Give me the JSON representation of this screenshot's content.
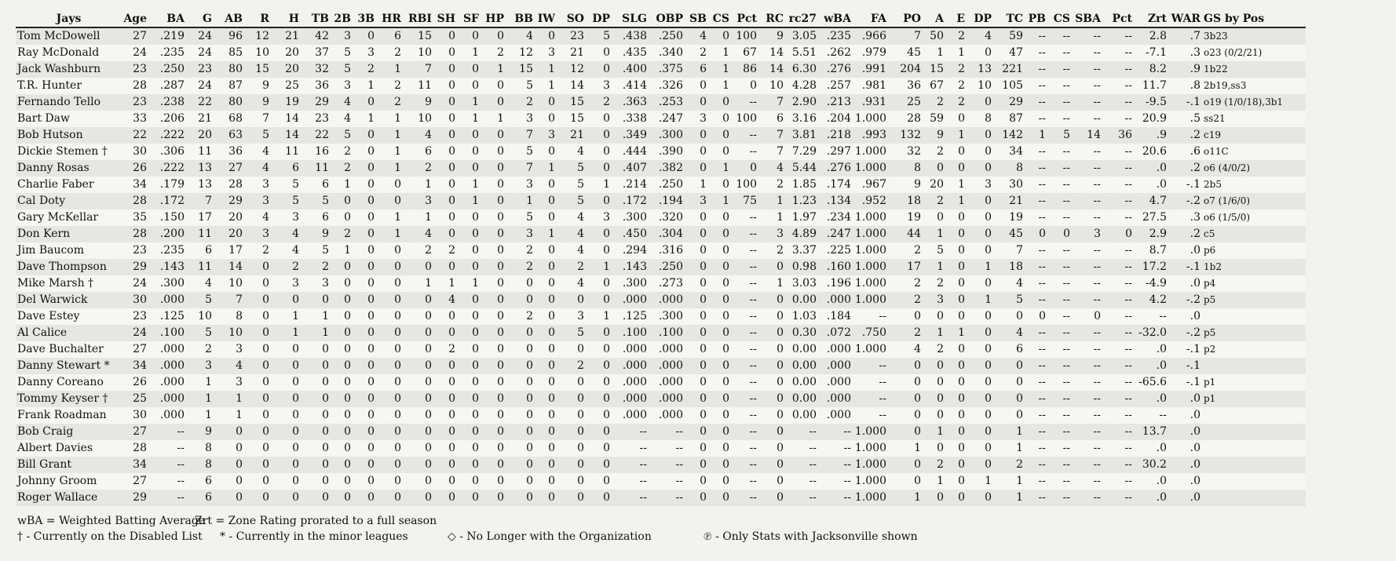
{
  "table": {
    "headers": [
      "Jays",
      "Age",
      "BA",
      "G",
      "AB",
      "R",
      "H",
      "TB",
      "2B",
      "3B",
      "HR",
      "RBI",
      "SH",
      "SF",
      "HP",
      "BB",
      "IW",
      "SO",
      "DP",
      "SLG",
      "OBP",
      "SB",
      "CS",
      "Pct",
      "RC",
      "rc27",
      "wBA",
      "FA",
      "PO",
      "A",
      "E",
      "DP",
      "TC",
      "PB",
      "CS",
      "SBA",
      "Pct",
      "Zrt",
      "WAR",
      "GS by Pos"
    ],
    "rows": [
      [
        "Tom McDowell",
        "27",
        ".219",
        "24",
        "96",
        "12",
        "21",
        "42",
        "3",
        "0",
        "6",
        "15",
        "0",
        "0",
        "0",
        "4",
        "0",
        "23",
        "5",
        ".438",
        ".250",
        "4",
        "0",
        "100",
        "9",
        "3.05",
        ".235",
        ".966",
        "7",
        "50",
        "2",
        "4",
        "59",
        "--",
        "--",
        "--",
        "--",
        "2.8",
        ".7",
        "3b23"
      ],
      [
        "Ray McDonald",
        "24",
        ".235",
        "24",
        "85",
        "10",
        "20",
        "37",
        "5",
        "3",
        "2",
        "10",
        "0",
        "1",
        "2",
        "12",
        "3",
        "21",
        "0",
        ".435",
        ".340",
        "2",
        "1",
        "67",
        "14",
        "5.51",
        ".262",
        ".979",
        "45",
        "1",
        "1",
        "0",
        "47",
        "--",
        "--",
        "--",
        "--",
        "-7.1",
        ".3",
        "o23 (0/2/21)"
      ],
      [
        "Jack Washburn",
        "23",
        ".250",
        "23",
        "80",
        "15",
        "20",
        "32",
        "5",
        "2",
        "1",
        "7",
        "0",
        "0",
        "1",
        "15",
        "1",
        "12",
        "0",
        ".400",
        ".375",
        "6",
        "1",
        "86",
        "14",
        "6.30",
        ".276",
        ".991",
        "204",
        "15",
        "2",
        "13",
        "221",
        "--",
        "--",
        "--",
        "--",
        "8.2",
        ".9",
        "1b22"
      ],
      [
        "T.R. Hunter",
        "28",
        ".287",
        "24",
        "87",
        "9",
        "25",
        "36",
        "3",
        "1",
        "2",
        "11",
        "0",
        "0",
        "0",
        "5",
        "1",
        "14",
        "3",
        ".414",
        ".326",
        "0",
        "1",
        "0",
        "10",
        "4.28",
        ".257",
        ".981",
        "36",
        "67",
        "2",
        "10",
        "105",
        "--",
        "--",
        "--",
        "--",
        "11.7",
        ".8",
        "2b19,ss3"
      ],
      [
        "Fernando Tello",
        "23",
        ".238",
        "22",
        "80",
        "9",
        "19",
        "29",
        "4",
        "0",
        "2",
        "9",
        "0",
        "1",
        "0",
        "2",
        "0",
        "15",
        "2",
        ".363",
        ".253",
        "0",
        "0",
        "--",
        "7",
        "2.90",
        ".213",
        ".931",
        "25",
        "2",
        "2",
        "0",
        "29",
        "--",
        "--",
        "--",
        "--",
        "-9.5",
        "-.1",
        "o19 (1/0/18),3b1"
      ],
      [
        "Bart Daw",
        "33",
        ".206",
        "21",
        "68",
        "7",
        "14",
        "23",
        "4",
        "1",
        "1",
        "10",
        "0",
        "1",
        "1",
        "3",
        "0",
        "15",
        "0",
        ".338",
        ".247",
        "3",
        "0",
        "100",
        "6",
        "3.16",
        ".204",
        "1.000",
        "28",
        "59",
        "0",
        "8",
        "87",
        "--",
        "--",
        "--",
        "--",
        "20.9",
        ".5",
        "ss21"
      ],
      [
        "Bob Hutson",
        "22",
        ".222",
        "20",
        "63",
        "5",
        "14",
        "22",
        "5",
        "0",
        "1",
        "4",
        "0",
        "0",
        "0",
        "7",
        "3",
        "21",
        "0",
        ".349",
        ".300",
        "0",
        "0",
        "--",
        "7",
        "3.81",
        ".218",
        ".993",
        "132",
        "9",
        "1",
        "0",
        "142",
        "1",
        "5",
        "14",
        "36",
        ".9",
        ".2",
        "c19"
      ],
      [
        "Dickie Stemen †",
        "30",
        ".306",
        "11",
        "36",
        "4",
        "11",
        "16",
        "2",
        "0",
        "1",
        "6",
        "0",
        "0",
        "0",
        "5",
        "0",
        "4",
        "0",
        ".444",
        ".390",
        "0",
        "0",
        "--",
        "7",
        "7.29",
        ".297",
        "1.000",
        "32",
        "2",
        "0",
        "0",
        "34",
        "--",
        "--",
        "--",
        "--",
        "20.6",
        ".6",
        "o11C"
      ],
      [
        "Danny Rosas",
        "26",
        ".222",
        "13",
        "27",
        "4",
        "6",
        "11",
        "2",
        "0",
        "1",
        "2",
        "0",
        "0",
        "0",
        "7",
        "1",
        "5",
        "0",
        ".407",
        ".382",
        "0",
        "1",
        "0",
        "4",
        "5.44",
        ".276",
        "1.000",
        "8",
        "0",
        "0",
        "0",
        "8",
        "--",
        "--",
        "--",
        "--",
        ".0",
        ".2",
        "o6 (4/0/2)"
      ],
      [
        "Charlie Faber",
        "34",
        ".179",
        "13",
        "28",
        "3",
        "5",
        "6",
        "1",
        "0",
        "0",
        "1",
        "0",
        "1",
        "0",
        "3",
        "0",
        "5",
        "1",
        ".214",
        ".250",
        "1",
        "0",
        "100",
        "2",
        "1.85",
        ".174",
        ".967",
        "9",
        "20",
        "1",
        "3",
        "30",
        "--",
        "--",
        "--",
        "--",
        ".0",
        "-.1",
        "2b5"
      ],
      [
        "Cal Doty",
        "28",
        ".172",
        "7",
        "29",
        "3",
        "5",
        "5",
        "0",
        "0",
        "0",
        "3",
        "0",
        "1",
        "0",
        "1",
        "0",
        "5",
        "0",
        ".172",
        ".194",
        "3",
        "1",
        "75",
        "1",
        "1.23",
        ".134",
        ".952",
        "18",
        "2",
        "1",
        "0",
        "21",
        "--",
        "--",
        "--",
        "--",
        "4.7",
        "-.2",
        "o7 (1/6/0)"
      ],
      [
        "Gary McKellar",
        "35",
        ".150",
        "17",
        "20",
        "4",
        "3",
        "6",
        "0",
        "0",
        "1",
        "1",
        "0",
        "0",
        "0",
        "5",
        "0",
        "4",
        "3",
        ".300",
        ".320",
        "0",
        "0",
        "--",
        "1",
        "1.97",
        ".234",
        "1.000",
        "19",
        "0",
        "0",
        "0",
        "19",
        "--",
        "--",
        "--",
        "--",
        "27.5",
        ".3",
        "o6 (1/5/0)"
      ],
      [
        "Don Kern",
        "28",
        ".200",
        "11",
        "20",
        "3",
        "4",
        "9",
        "2",
        "0",
        "1",
        "4",
        "0",
        "0",
        "0",
        "3",
        "1",
        "4",
        "0",
        ".450",
        ".304",
        "0",
        "0",
        "--",
        "3",
        "4.89",
        ".247",
        "1.000",
        "44",
        "1",
        "0",
        "0",
        "45",
        "0",
        "0",
        "3",
        "0",
        "2.9",
        ".2",
        "c5"
      ],
      [
        "Jim Baucom",
        "23",
        ".235",
        "6",
        "17",
        "2",
        "4",
        "5",
        "1",
        "0",
        "0",
        "2",
        "2",
        "0",
        "0",
        "2",
        "0",
        "4",
        "0",
        ".294",
        ".316",
        "0",
        "0",
        "--",
        "2",
        "3.37",
        ".225",
        "1.000",
        "2",
        "5",
        "0",
        "0",
        "7",
        "--",
        "--",
        "--",
        "--",
        "8.7",
        ".0",
        "p6"
      ],
      [
        "Dave Thompson",
        "29",
        ".143",
        "11",
        "14",
        "0",
        "2",
        "2",
        "0",
        "0",
        "0",
        "0",
        "0",
        "0",
        "0",
        "2",
        "0",
        "2",
        "1",
        ".143",
        ".250",
        "0",
        "0",
        "--",
        "0",
        "0.98",
        ".160",
        "1.000",
        "17",
        "1",
        "0",
        "1",
        "18",
        "--",
        "--",
        "--",
        "--",
        "17.2",
        "-.1",
        "1b2"
      ],
      [
        "Mike Marsh †",
        "24",
        ".300",
        "4",
        "10",
        "0",
        "3",
        "3",
        "0",
        "0",
        "0",
        "1",
        "1",
        "1",
        "0",
        "0",
        "0",
        "4",
        "0",
        ".300",
        ".273",
        "0",
        "0",
        "--",
        "1",
        "3.03",
        ".196",
        "1.000",
        "2",
        "2",
        "0",
        "0",
        "4",
        "--",
        "--",
        "--",
        "--",
        "-4.9",
        ".0",
        "p4"
      ],
      [
        "Del Warwick",
        "30",
        ".000",
        "5",
        "7",
        "0",
        "0",
        "0",
        "0",
        "0",
        "0",
        "0",
        "4",
        "0",
        "0",
        "0",
        "0",
        "0",
        "0",
        ".000",
        ".000",
        "0",
        "0",
        "--",
        "0",
        "0.00",
        ".000",
        "1.000",
        "2",
        "3",
        "0",
        "1",
        "5",
        "--",
        "--",
        "--",
        "--",
        "4.2",
        "-.2",
        "p5"
      ],
      [
        "Dave Estey",
        "23",
        ".125",
        "10",
        "8",
        "0",
        "1",
        "1",
        "0",
        "0",
        "0",
        "0",
        "0",
        "0",
        "0",
        "2",
        "0",
        "3",
        "1",
        ".125",
        ".300",
        "0",
        "0",
        "--",
        "0",
        "1.03",
        ".184",
        "--",
        "0",
        "0",
        "0",
        "0",
        "0",
        "0",
        "--",
        "0",
        "--",
        "--",
        ".0",
        ""
      ],
      [
        "Al Calice",
        "24",
        ".100",
        "5",
        "10",
        "0",
        "1",
        "1",
        "0",
        "0",
        "0",
        "0",
        "0",
        "0",
        "0",
        "0",
        "0",
        "5",
        "0",
        ".100",
        ".100",
        "0",
        "0",
        "--",
        "0",
        "0.30",
        ".072",
        ".750",
        "2",
        "1",
        "1",
        "0",
        "4",
        "--",
        "--",
        "--",
        "--",
        "-32.0",
        "-.2",
        "p5"
      ],
      [
        "Dave Buchalter",
        "27",
        ".000",
        "2",
        "3",
        "0",
        "0",
        "0",
        "0",
        "0",
        "0",
        "0",
        "2",
        "0",
        "0",
        "0",
        "0",
        "0",
        "0",
        ".000",
        ".000",
        "0",
        "0",
        "--",
        "0",
        "0.00",
        ".000",
        "1.000",
        "4",
        "2",
        "0",
        "0",
        "6",
        "--",
        "--",
        "--",
        "--",
        ".0",
        "-.1",
        "p2"
      ],
      [
        "Danny Stewart *",
        "34",
        ".000",
        "3",
        "4",
        "0",
        "0",
        "0",
        "0",
        "0",
        "0",
        "0",
        "0",
        "0",
        "0",
        "0",
        "0",
        "2",
        "0",
        ".000",
        ".000",
        "0",
        "0",
        "--",
        "0",
        "0.00",
        ".000",
        "--",
        "0",
        "0",
        "0",
        "0",
        "0",
        "--",
        "--",
        "--",
        "--",
        ".0",
        "-.1",
        ""
      ],
      [
        "Danny Coreano",
        "26",
        ".000",
        "1",
        "3",
        "0",
        "0",
        "0",
        "0",
        "0",
        "0",
        "0",
        "0",
        "0",
        "0",
        "0",
        "0",
        "0",
        "0",
        ".000",
        ".000",
        "0",
        "0",
        "--",
        "0",
        "0.00",
        ".000",
        "--",
        "0",
        "0",
        "0",
        "0",
        "0",
        "--",
        "--",
        "--",
        "--",
        "-65.6",
        "-.1",
        "p1"
      ],
      [
        "Tommy Keyser †",
        "25",
        ".000",
        "1",
        "1",
        "0",
        "0",
        "0",
        "0",
        "0",
        "0",
        "0",
        "0",
        "0",
        "0",
        "0",
        "0",
        "0",
        "0",
        ".000",
        ".000",
        "0",
        "0",
        "--",
        "0",
        "0.00",
        ".000",
        "--",
        "0",
        "0",
        "0",
        "0",
        "0",
        "--",
        "--",
        "--",
        "--",
        ".0",
        ".0",
        "p1"
      ],
      [
        "Frank Roadman",
        "30",
        ".000",
        "1",
        "1",
        "0",
        "0",
        "0",
        "0",
        "0",
        "0",
        "0",
        "0",
        "0",
        "0",
        "0",
        "0",
        "0",
        "0",
        ".000",
        ".000",
        "0",
        "0",
        "--",
        "0",
        "0.00",
        ".000",
        "--",
        "0",
        "0",
        "0",
        "0",
        "0",
        "--",
        "--",
        "--",
        "--",
        "--",
        ".0",
        ""
      ],
      [
        "Bob Craig",
        "27",
        "--",
        "9",
        "0",
        "0",
        "0",
        "0",
        "0",
        "0",
        "0",
        "0",
        "0",
        "0",
        "0",
        "0",
        "0",
        "0",
        "0",
        "--",
        "--",
        "0",
        "0",
        "--",
        "0",
        "--",
        "--",
        "1.000",
        "0",
        "1",
        "0",
        "0",
        "1",
        "--",
        "--",
        "--",
        "--",
        "13.7",
        ".0",
        ""
      ],
      [
        "Albert Davies",
        "28",
        "--",
        "8",
        "0",
        "0",
        "0",
        "0",
        "0",
        "0",
        "0",
        "0",
        "0",
        "0",
        "0",
        "0",
        "0",
        "0",
        "0",
        "--",
        "--",
        "0",
        "0",
        "--",
        "0",
        "--",
        "--",
        "1.000",
        "1",
        "0",
        "0",
        "0",
        "1",
        "--",
        "--",
        "--",
        "--",
        ".0",
        ".0",
        ""
      ],
      [
        "Bill Grant",
        "34",
        "--",
        "8",
        "0",
        "0",
        "0",
        "0",
        "0",
        "0",
        "0",
        "0",
        "0",
        "0",
        "0",
        "0",
        "0",
        "0",
        "0",
        "--",
        "--",
        "0",
        "0",
        "--",
        "0",
        "--",
        "--",
        "1.000",
        "0",
        "2",
        "0",
        "0",
        "2",
        "--",
        "--",
        "--",
        "--",
        "30.2",
        ".0",
        ""
      ],
      [
        "Johnny Groom",
        "27",
        "--",
        "6",
        "0",
        "0",
        "0",
        "0",
        "0",
        "0",
        "0",
        "0",
        "0",
        "0",
        "0",
        "0",
        "0",
        "0",
        "0",
        "--",
        "--",
        "0",
        "0",
        "--",
        "0",
        "--",
        "--",
        "1.000",
        "0",
        "1",
        "0",
        "1",
        "1",
        "--",
        "--",
        "--",
        "--",
        ".0",
        ".0",
        ""
      ],
      [
        "Roger Wallace",
        "29",
        "--",
        "6",
        "0",
        "0",
        "0",
        "0",
        "0",
        "0",
        "0",
        "0",
        "0",
        "0",
        "0",
        "0",
        "0",
        "0",
        "0",
        "--",
        "--",
        "0",
        "0",
        "--",
        "0",
        "--",
        "--",
        "1.000",
        "1",
        "0",
        "0",
        "0",
        "1",
        "--",
        "--",
        "--",
        "--",
        ".0",
        ".0",
        ""
      ]
    ]
  },
  "legend": {
    "wba": "wBA = Weighted Batting Average",
    "zrt": "Zrt = Zone Rating prorated to a full season",
    "dl": "† - Currently on the Disabled List",
    "minors": "* - Currently in the minor leagues",
    "no_longer": "◇ - No Longer with the Organization",
    "only_stats": "℗ - Only Stats with Jacksonville shown"
  }
}
